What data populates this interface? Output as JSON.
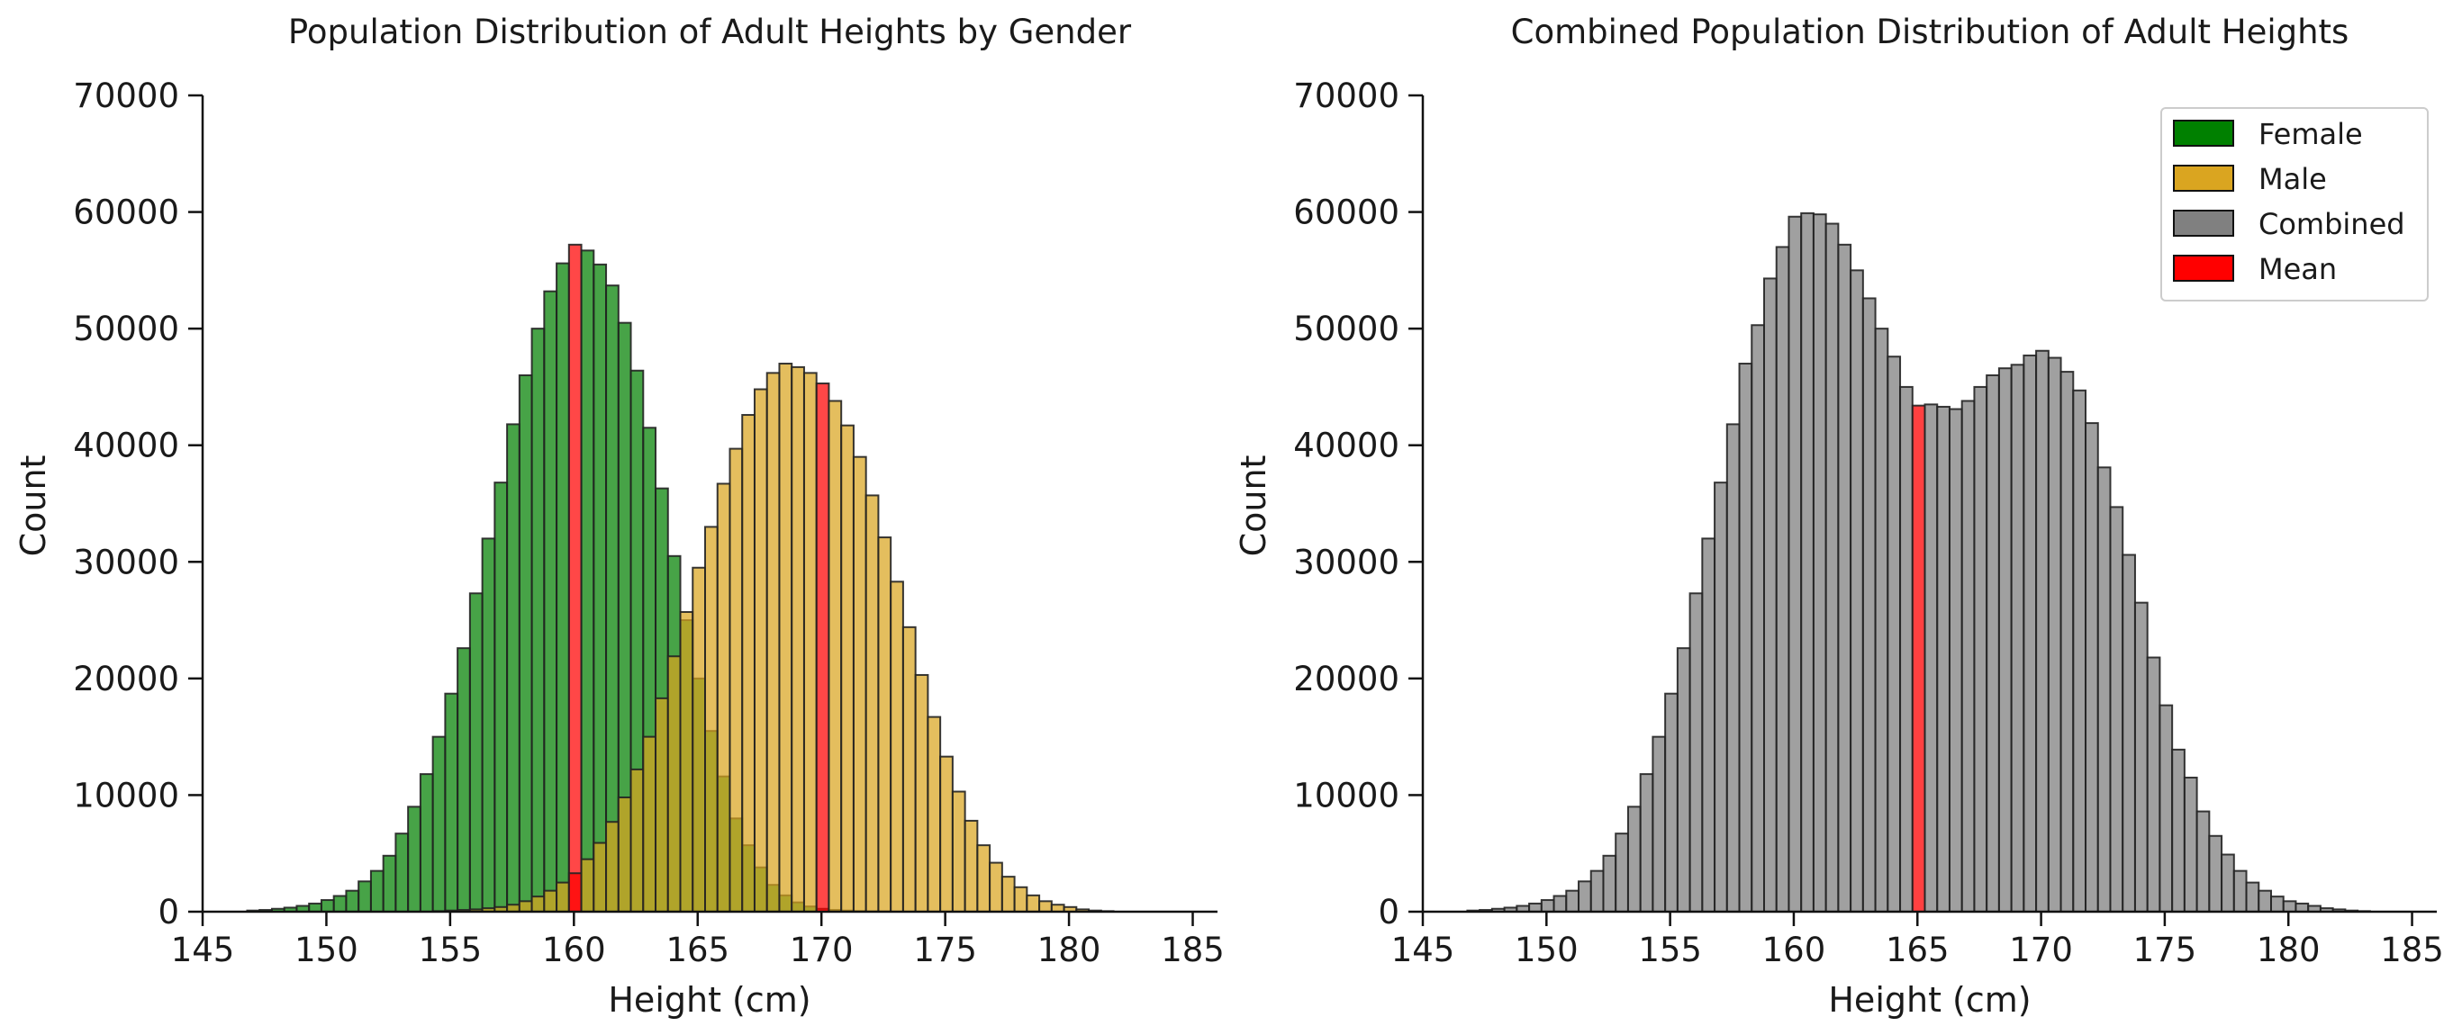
{
  "colors": {
    "female": "#008000",
    "male": "#daa520",
    "combined": "#808080",
    "mean": "#ff0000",
    "edge": "#222222"
  },
  "chart_data": [
    {
      "type": "bar",
      "title": "Population Distribution of Adult Heights by Gender",
      "xlabel": "Height (cm)",
      "ylabel": "Count",
      "xlim": [
        145,
        186
      ],
      "ylim": [
        0,
        70000
      ],
      "xticks": [
        "145",
        "150",
        "155",
        "160",
        "165",
        "170",
        "175",
        "180",
        "185"
      ],
      "yticks": [
        "0",
        "10000",
        "20000",
        "30000",
        "40000",
        "50000",
        "60000",
        "70000"
      ],
      "bin_start": 146.3,
      "bin_width": 0.5,
      "grid": false,
      "series": [
        {
          "name": "Female",
          "color": "#008000",
          "opacity": 0.72,
          "values": [
            0,
            100,
            150,
            250,
            350,
            500,
            700,
            1000,
            1350,
            1800,
            2600,
            3500,
            4800,
            6700,
            9000,
            11800,
            15000,
            18700,
            22600,
            27300,
            32000,
            36800,
            41800,
            46000,
            50000,
            53200,
            55600,
            57200,
            56700,
            55500,
            53700,
            50500,
            46400,
            41500,
            36300,
            30500,
            25000,
            20000,
            15500,
            11600,
            8000,
            5700,
            3800,
            2300,
            1400,
            800,
            450,
            250,
            150,
            100,
            50,
            30,
            20,
            0,
            0,
            0,
            0,
            0,
            0,
            0,
            0,
            0,
            0,
            0,
            0,
            0,
            0,
            0,
            0,
            0,
            0,
            0,
            0,
            0,
            0,
            0,
            0,
            0
          ]
        },
        {
          "name": "Male",
          "color": "#daa520",
          "opacity": 0.72,
          "values": [
            0,
            0,
            0,
            0,
            0,
            0,
            0,
            0,
            0,
            0,
            0,
            0,
            0,
            0,
            0,
            0,
            50,
            100,
            150,
            200,
            300,
            400,
            600,
            900,
            1300,
            1800,
            2500,
            3300,
            4500,
            5900,
            7700,
            9800,
            12200,
            15000,
            18300,
            21900,
            25700,
            29500,
            33000,
            36700,
            39700,
            42600,
            44800,
            46200,
            47000,
            46700,
            46200,
            45300,
            43800,
            41700,
            39000,
            35700,
            32100,
            28300,
            24400,
            20300,
            16700,
            13300,
            10300,
            7800,
            5700,
            4200,
            3000,
            2100,
            1400,
            900,
            600,
            400,
            200,
            100,
            50,
            0,
            0,
            0,
            0,
            0,
            0,
            0
          ]
        },
        {
          "name": "Mean",
          "color": "#ff0000",
          "values": [
            160.2,
            169.8
          ]
        }
      ]
    },
    {
      "type": "bar",
      "title": "Combined Population Distribution of Adult Heights",
      "xlabel": "Height (cm)",
      "ylabel": "Count",
      "xlim": [
        145,
        186
      ],
      "ylim": [
        0,
        70000
      ],
      "xticks": [
        "145",
        "150",
        "155",
        "160",
        "165",
        "170",
        "175",
        "180",
        "185"
      ],
      "yticks": [
        "0",
        "10000",
        "20000",
        "30000",
        "40000",
        "50000",
        "60000",
        "70000"
      ],
      "bin_start": 146.3,
      "bin_width": 0.5,
      "grid": false,
      "series": [
        {
          "name": "Combined",
          "color": "#808080",
          "opacity": 0.75,
          "values": [
            0,
            100,
            150,
            250,
            350,
            500,
            700,
            1000,
            1350,
            1800,
            2600,
            3500,
            4800,
            6700,
            9000,
            11800,
            15000,
            18700,
            22600,
            27300,
            32000,
            36800,
            41800,
            47000,
            50300,
            54300,
            57000,
            59600,
            59900,
            59800,
            59000,
            57200,
            55000,
            52600,
            50000,
            47600,
            45000,
            43400,
            43500,
            43300,
            43100,
            43800,
            45000,
            46000,
            46600,
            46900,
            47700,
            48100,
            47500,
            46300,
            44700,
            41900,
            38100,
            34700,
            30600,
            26500,
            21800,
            17700,
            13900,
            11500,
            8600,
            6500,
            4900,
            3500,
            2500,
            1800,
            1300,
            900,
            700,
            500,
            300,
            200,
            100,
            50,
            0,
            0,
            0,
            0
          ]
        },
        {
          "name": "Mean",
          "color": "#ff0000",
          "values": [
            165.2
          ]
        }
      ],
      "legend": {
        "placement": "top-right",
        "entries": [
          {
            "label": "Female",
            "color": "#008000"
          },
          {
            "label": "Male",
            "color": "#daa520"
          },
          {
            "label": "Combined",
            "color": "#808080"
          },
          {
            "label": "Mean",
            "color": "#ff0000"
          }
        ]
      }
    }
  ]
}
